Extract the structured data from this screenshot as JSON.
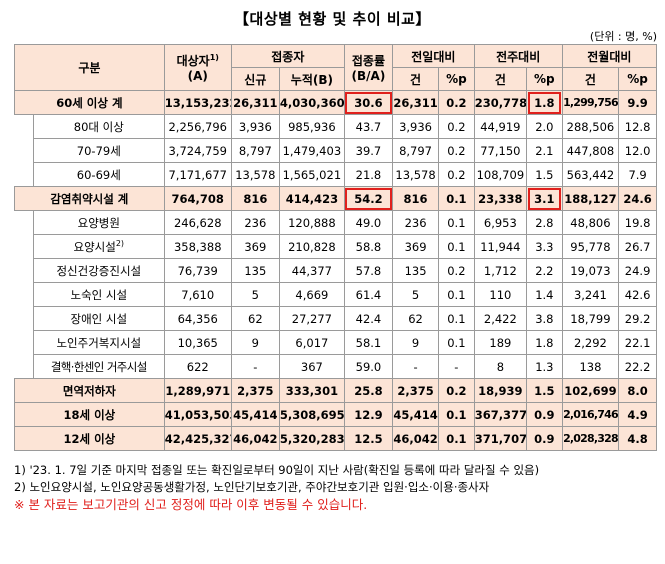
{
  "title": "【대상별 현황 및 추이 비교】",
  "unit": "(단위 : 명, %)",
  "headers": {
    "category": "구분",
    "target": "대상자",
    "target_sup": "1)",
    "target_unit": "(A)",
    "vaccinated": "접종자",
    "new": "신규",
    "cumulative": "누적(B)",
    "rate": "접종률",
    "rate_unit": "(B/A)",
    "prev_day": "전일대비",
    "prev_week": "전주대비",
    "prev_month": "전월대비",
    "count": "건",
    "pp": "%p"
  },
  "rows": [
    {
      "name": "60세 이상 계",
      "target": "13,153,232",
      "new": "26,311",
      "cum": "4,030,360",
      "rate": "30.6",
      "d_cnt": "26,311",
      "d_pp": "0.2",
      "w_cnt": "230,778",
      "w_pp": "1.8",
      "m_cnt": "1,299,756",
      "m_pp": "9.9"
    },
    {
      "name": "80대 이상",
      "target": "2,256,796",
      "new": "3,936",
      "cum": "985,936",
      "rate": "43.7",
      "d_cnt": "3,936",
      "d_pp": "0.2",
      "w_cnt": "44,919",
      "w_pp": "2.0",
      "m_cnt": "288,506",
      "m_pp": "12.8"
    },
    {
      "name": "70-79세",
      "target": "3,724,759",
      "new": "8,797",
      "cum": "1,479,403",
      "rate": "39.7",
      "d_cnt": "8,797",
      "d_pp": "0.2",
      "w_cnt": "77,150",
      "w_pp": "2.1",
      "m_cnt": "447,808",
      "m_pp": "12.0"
    },
    {
      "name": "60-69세",
      "target": "7,171,677",
      "new": "13,578",
      "cum": "1,565,021",
      "rate": "21.8",
      "d_cnt": "13,578",
      "d_pp": "0.2",
      "w_cnt": "108,709",
      "w_pp": "1.5",
      "m_cnt": "563,442",
      "m_pp": "7.9"
    },
    {
      "name": "감염취약시설 계",
      "target": "764,708",
      "new": "816",
      "cum": "414,423",
      "rate": "54.2",
      "d_cnt": "816",
      "d_pp": "0.1",
      "w_cnt": "23,338",
      "w_pp": "3.1",
      "m_cnt": "188,127",
      "m_pp": "24.6"
    },
    {
      "name": "요양병원",
      "target": "246,628",
      "new": "236",
      "cum": "120,888",
      "rate": "49.0",
      "d_cnt": "236",
      "d_pp": "0.1",
      "w_cnt": "6,953",
      "w_pp": "2.8",
      "m_cnt": "48,806",
      "m_pp": "19.8"
    },
    {
      "name": "요양시설",
      "name_sup": "2)",
      "target": "358,388",
      "new": "369",
      "cum": "210,828",
      "rate": "58.8",
      "d_cnt": "369",
      "d_pp": "0.1",
      "w_cnt": "11,944",
      "w_pp": "3.3",
      "m_cnt": "95,778",
      "m_pp": "26.7"
    },
    {
      "name": "정신건강증진시설",
      "target": "76,739",
      "new": "135",
      "cum": "44,377",
      "rate": "57.8",
      "d_cnt": "135",
      "d_pp": "0.2",
      "w_cnt": "1,712",
      "w_pp": "2.2",
      "m_cnt": "19,073",
      "m_pp": "24.9"
    },
    {
      "name": "노숙인 시설",
      "target": "7,610",
      "new": "5",
      "cum": "4,669",
      "rate": "61.4",
      "d_cnt": "5",
      "d_pp": "0.1",
      "w_cnt": "110",
      "w_pp": "1.4",
      "m_cnt": "3,241",
      "m_pp": "42.6"
    },
    {
      "name": "장애인 시설",
      "target": "64,356",
      "new": "62",
      "cum": "27,277",
      "rate": "42.4",
      "d_cnt": "62",
      "d_pp": "0.1",
      "w_cnt": "2,422",
      "w_pp": "3.8",
      "m_cnt": "18,799",
      "m_pp": "29.2"
    },
    {
      "name": "노인주거복지시설",
      "target": "10,365",
      "new": "9",
      "cum": "6,017",
      "rate": "58.1",
      "d_cnt": "9",
      "d_pp": "0.1",
      "w_cnt": "189",
      "w_pp": "1.8",
      "m_cnt": "2,292",
      "m_pp": "22.1"
    },
    {
      "name": "결핵·한센인 거주시설",
      "target": "622",
      "new": "-",
      "cum": "367",
      "rate": "59.0",
      "d_cnt": "-",
      "d_pp": "-",
      "w_cnt": "8",
      "w_pp": "1.3",
      "m_cnt": "138",
      "m_pp": "22.2"
    },
    {
      "name": "면역저하자",
      "target": "1,289,971",
      "new": "2,375",
      "cum": "333,301",
      "rate": "25.8",
      "d_cnt": "2,375",
      "d_pp": "0.2",
      "w_cnt": "18,939",
      "w_pp": "1.5",
      "m_cnt": "102,699",
      "m_pp": "8.0"
    },
    {
      "name": "18세 이상",
      "target": "41,053,503",
      "new": "45,414",
      "cum": "5,308,695",
      "rate": "12.9",
      "d_cnt": "45,414",
      "d_pp": "0.1",
      "w_cnt": "367,377",
      "w_pp": "0.9",
      "m_cnt": "2,016,746",
      "m_pp": "4.9"
    },
    {
      "name": "12세 이상",
      "target": "42,425,327",
      "new": "46,042",
      "cum": "5,320,283",
      "rate": "12.5",
      "d_cnt": "46,042",
      "d_pp": "0.1",
      "w_cnt": "371,707",
      "w_pp": "0.9",
      "m_cnt": "2,028,328",
      "m_pp": "4.8"
    }
  ],
  "notes": {
    "n1": "1) '23. 1. 7일 기준 마지막 접종일 또는 확진일로부터 90일이 지난 사람(확진일 등록에 따라 달라질 수 있음)",
    "n2": "2) 노인요양시설, 노인요양공동생활가정, 노인단기보호기관, 주야간보호기관 입원·입소·이용·종사자",
    "warn": "※ 본 자료는 보고기관의 신고 정정에 따라 이후 변동될 수 있습니다."
  },
  "colors": {
    "header_bg": "#fce4d6",
    "highlight_border": "#e0201c"
  }
}
